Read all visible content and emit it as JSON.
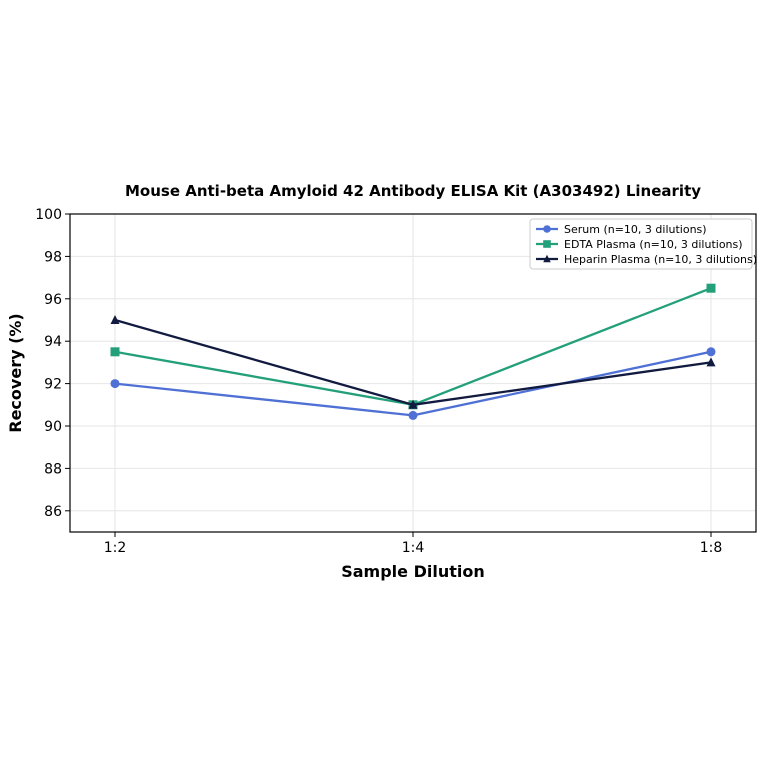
{
  "chart_data": {
    "type": "line",
    "title": "Mouse Anti-beta Amyloid 42 Antibody ELISA Kit (A303492) Linearity",
    "xlabel": "Sample Dilution",
    "ylabel": "Recovery (%)",
    "categories": [
      "1:2",
      "1:4",
      "1:8"
    ],
    "ylim": [
      85,
      100
    ],
    "yticks": [
      86,
      88,
      90,
      92,
      94,
      96,
      98,
      100
    ],
    "grid": true,
    "legend_position": "top-right",
    "series": [
      {
        "name": "Serum (n=10, 3 dilutions)",
        "values": [
          92.0,
          90.5,
          93.5
        ],
        "color": "#4f70d4",
        "marker": "circle"
      },
      {
        "name": "EDTA Plasma (n=10, 3 dilutions)",
        "values": [
          93.5,
          91.0,
          96.5
        ],
        "color": "#23a07a",
        "marker": "square"
      },
      {
        "name": "Heparin Plasma (n=10, 3 dilutions)",
        "values": [
          95.0,
          91.0,
          93.0
        ],
        "color": "#111a3f",
        "marker": "triangle"
      }
    ]
  }
}
